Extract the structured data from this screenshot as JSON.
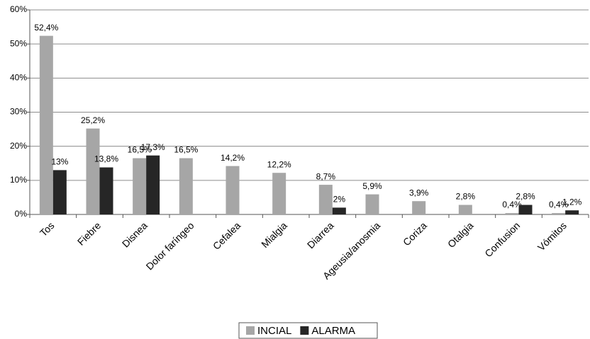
{
  "chart_data": {
    "type": "bar",
    "categories": [
      "Tos",
      "Fiebre",
      "Disnea",
      "Dolor faríngeo",
      "Cefalea",
      "Mialgia",
      "Diarrea",
      "Ageusia/anosmia",
      "Coriza",
      "Otalgia",
      "Confusion",
      "Vómitos"
    ],
    "series": [
      {
        "name": "INCIAL",
        "color": "#a6a6a6",
        "values": [
          52.4,
          25.2,
          16.5,
          16.5,
          14.2,
          12.2,
          8.7,
          5.9,
          3.9,
          2.8,
          0.4,
          0.4
        ],
        "value_labels": [
          "52,4%",
          "25,2%",
          "16,5%",
          "16,5%",
          "14,2%",
          "12,2%",
          "8,7%",
          "5,9%",
          "3,9%",
          "2,8%",
          "0,4%",
          "0,4%"
        ]
      },
      {
        "name": "ALARMA",
        "color": "#262626",
        "values": [
          13,
          13.8,
          17.3,
          null,
          null,
          null,
          2,
          null,
          null,
          null,
          2.8,
          1.2
        ],
        "value_labels": [
          "13%",
          "13,8%",
          "17,3%",
          null,
          null,
          null,
          "2%",
          null,
          null,
          null,
          "2,8%",
          "1,2%"
        ]
      }
    ],
    "ylim": [
      0,
      60
    ],
    "yticks": [
      {
        "value": 0,
        "label": "0%"
      },
      {
        "value": 10,
        "label": "10%"
      },
      {
        "value": 20,
        "label": "20%"
      },
      {
        "value": 30,
        "label": "30%"
      },
      {
        "value": 40,
        "label": "40%"
      },
      {
        "value": 50,
        "label": "50%"
      },
      {
        "value": 60,
        "label": "60%"
      }
    ],
    "grid": true,
    "legend": "bottom"
  }
}
